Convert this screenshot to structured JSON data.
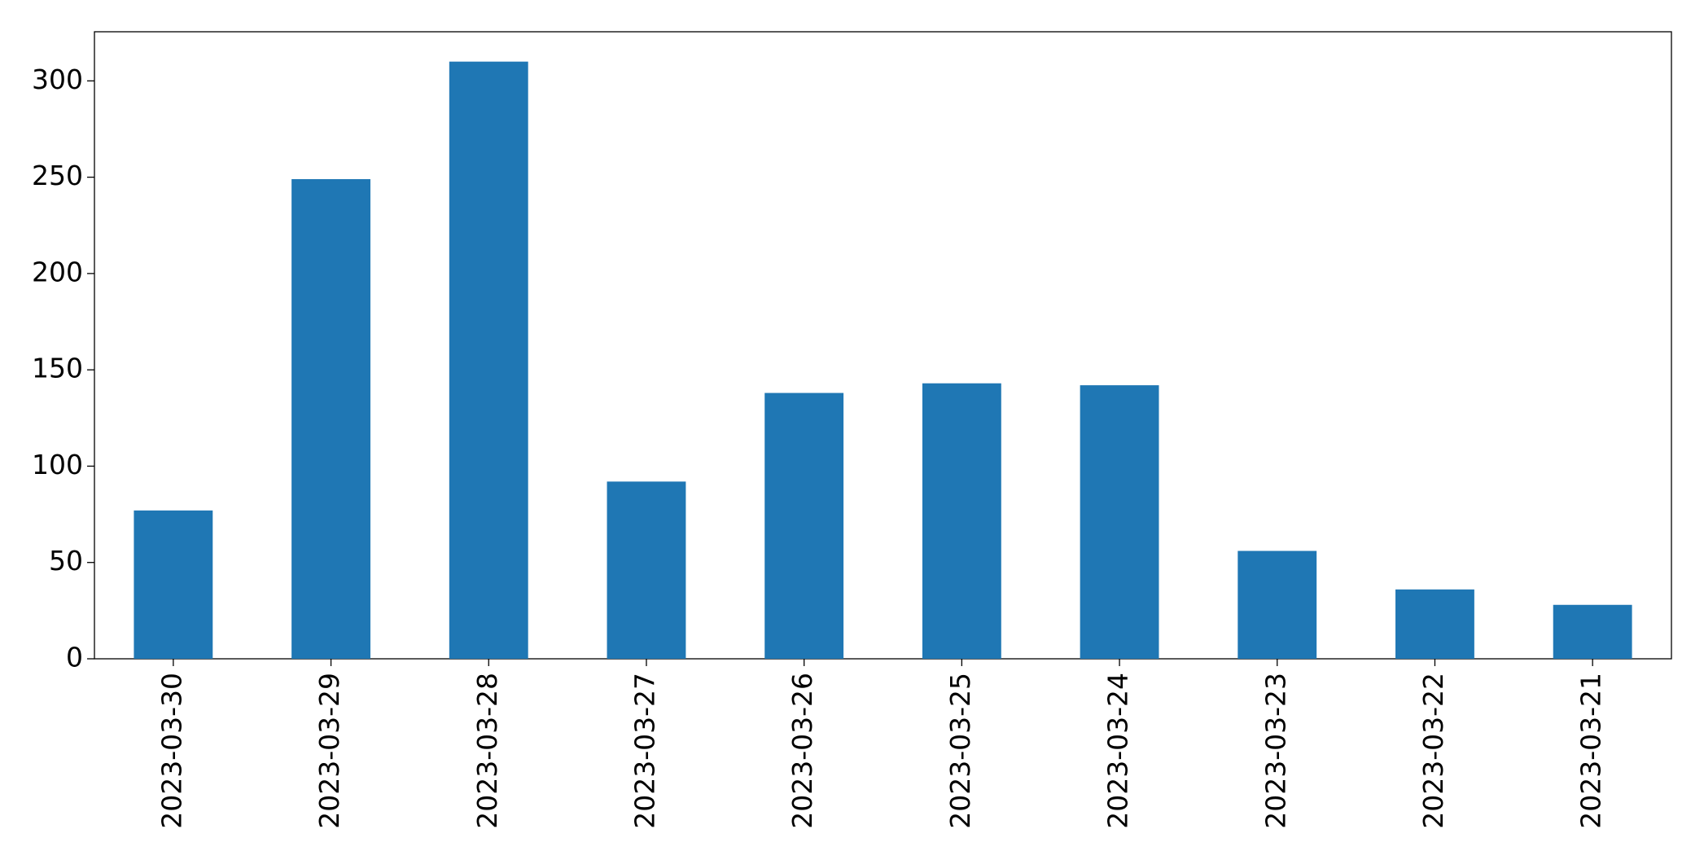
{
  "chart_data": {
    "type": "bar",
    "categories": [
      "2023-03-30",
      "2023-03-29",
      "2023-03-28",
      "2023-03-27",
      "2023-03-26",
      "2023-03-25",
      "2023-03-24",
      "2023-03-23",
      "2023-03-22",
      "2023-03-21"
    ],
    "values": [
      77,
      249,
      310,
      92,
      138,
      143,
      142,
      56,
      36,
      28
    ],
    "color": "#1f77b4",
    "ylim": [
      0,
      325.5
    ],
    "yticks": [
      0,
      50,
      100,
      150,
      200,
      250,
      300
    ],
    "grid": false
  }
}
